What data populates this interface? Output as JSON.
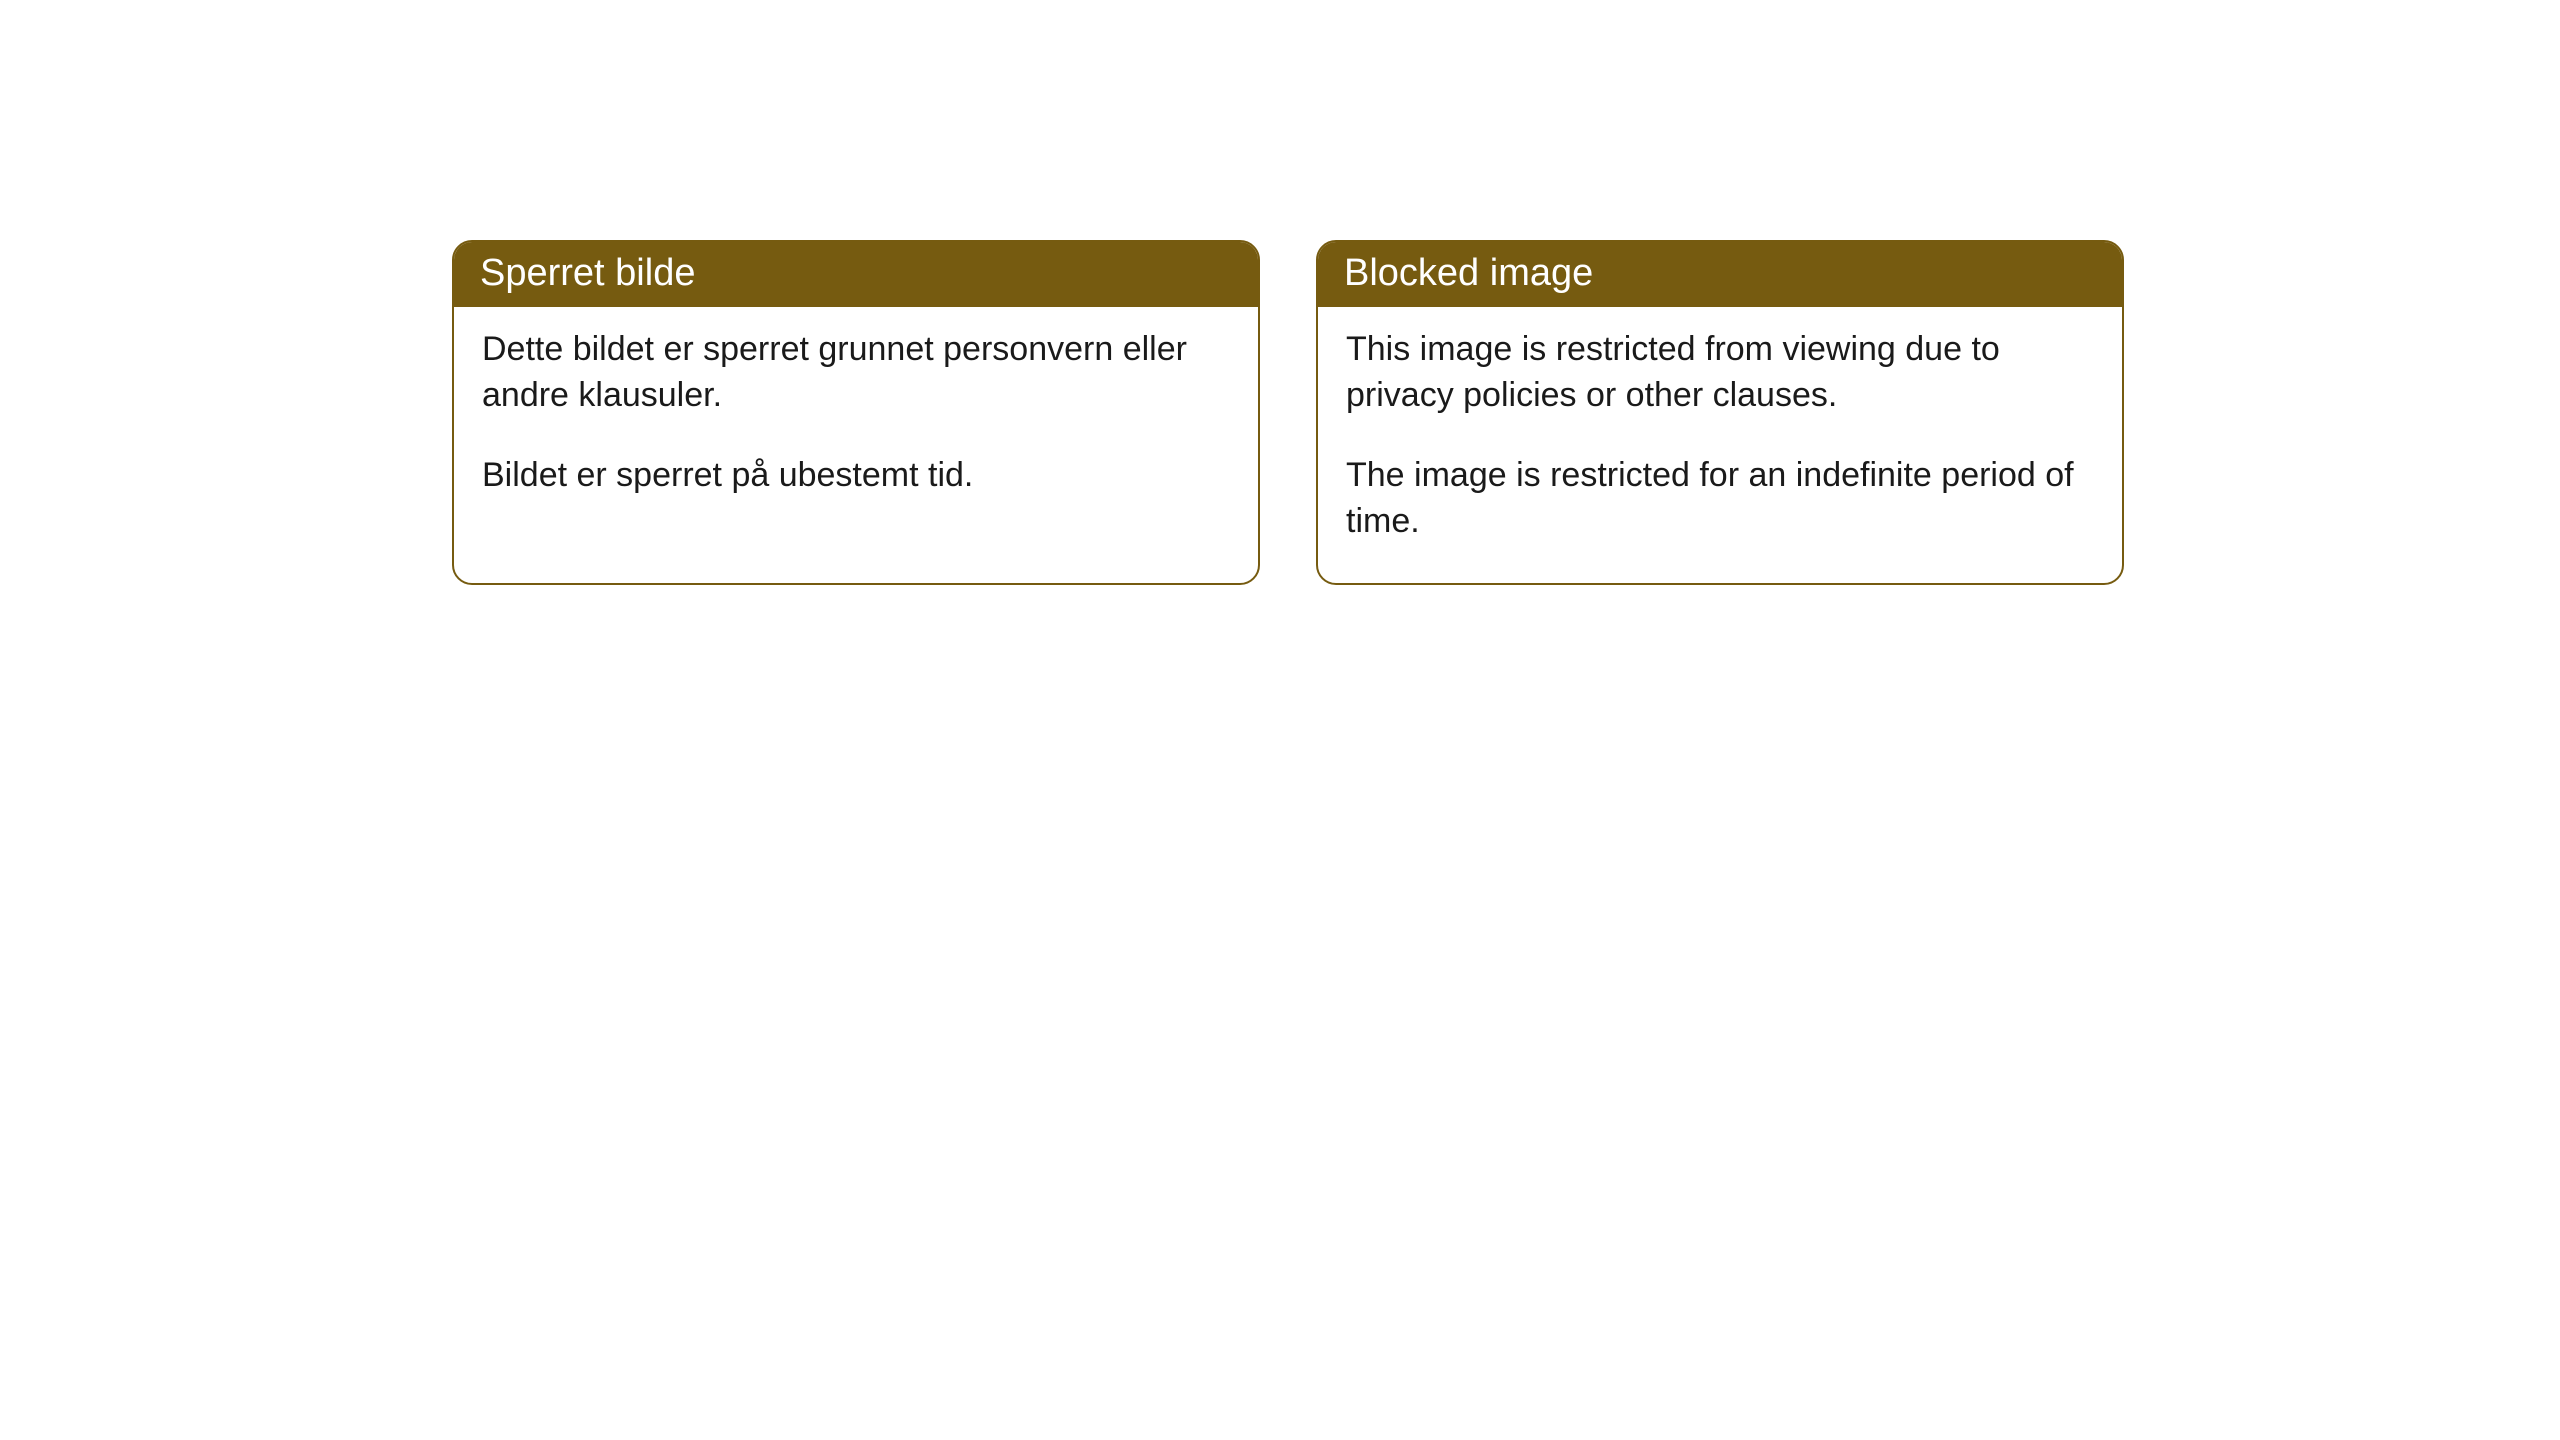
{
  "cards": {
    "norwegian": {
      "title": "Sperret bilde",
      "paragraph1": "Dette bildet er sperret grunnet personvern eller andre klausuler.",
      "paragraph2": "Bildet er sperret på ubestemt tid."
    },
    "english": {
      "title": "Blocked image",
      "paragraph1": "This image is restricted from viewing due to privacy policies or other clauses.",
      "paragraph2": "The image is restricted for an indefinite period of time."
    }
  },
  "style": {
    "header_bg_color": "#765b10",
    "header_text_color": "#ffffff",
    "border_color": "#765b10",
    "body_text_color": "#1a1a1a",
    "background_color": "#ffffff",
    "border_radius": 20,
    "title_fontsize": 38,
    "body_fontsize": 34
  }
}
